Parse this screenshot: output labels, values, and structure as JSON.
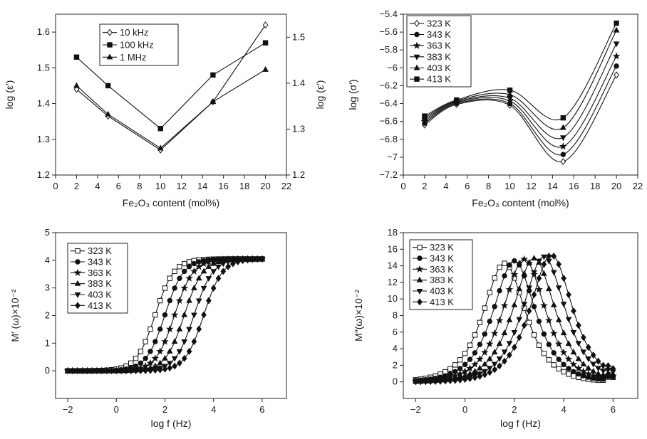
{
  "charts": [
    {
      "id": "a",
      "type": "line",
      "xlabel": "Fe₂O₃ content (mol%)",
      "ylabel": "log (ε′)",
      "ylabel_right": "log (ε′)",
      "xlim": [
        0,
        22
      ],
      "ylim": [
        1.2,
        1.65
      ],
      "ylim_right": [
        1.2,
        1.55
      ],
      "xticks": [
        0,
        2,
        4,
        6,
        8,
        10,
        12,
        14,
        16,
        18,
        20,
        22
      ],
      "yticks": [
        1.2,
        1.3,
        1.4,
        1.5,
        1.6
      ],
      "yticks_right": [
        1.2,
        1.3,
        1.4,
        1.5
      ],
      "legend_position": "top-center",
      "legend_style": "boxed",
      "series": [
        {
          "name": "10 kHz",
          "marker": "diamond-open",
          "x": [
            2,
            5,
            10,
            15,
            20
          ],
          "y": [
            1.44,
            1.365,
            1.27,
            1.405,
            1.62
          ]
        },
        {
          "name": "100 kHz",
          "marker": "square",
          "x": [
            2,
            5,
            10,
            15,
            20
          ],
          "y": [
            1.53,
            1.45,
            1.33,
            1.48,
            1.57
          ]
        },
        {
          "name": "1 MHz",
          "marker": "triangle",
          "x": [
            2,
            5,
            10,
            15,
            20
          ],
          "y": [
            1.45,
            1.37,
            1.275,
            1.405,
            1.495
          ]
        }
      ]
    },
    {
      "id": "b",
      "type": "line",
      "xlabel": "Fe₂O₃ content (mol%)",
      "ylabel": "log (σ′)",
      "xlim": [
        0,
        22
      ],
      "ylim": [
        -7.2,
        -5.4
      ],
      "xticks": [
        0,
        2,
        4,
        6,
        8,
        10,
        12,
        14,
        16,
        18,
        20,
        22
      ],
      "yticks": [
        -7.2,
        -7.0,
        -6.8,
        -6.6,
        -6.4,
        -6.2,
        -6.0,
        -5.8,
        -5.6,
        -5.4
      ],
      "legend_position": "top-left",
      "legend_style": "boxed",
      "series": [
        {
          "name": "323 K",
          "marker": "diamond-open",
          "x": [
            2,
            5,
            10,
            15,
            20
          ],
          "y": [
            -6.64,
            -6.41,
            -6.42,
            -7.05,
            -6.08
          ]
        },
        {
          "name": "343 K",
          "marker": "circle",
          "x": [
            2,
            5,
            10,
            15,
            20
          ],
          "y": [
            -6.62,
            -6.4,
            -6.4,
            -6.97,
            -5.98
          ]
        },
        {
          "name": "363 K",
          "marker": "star",
          "x": [
            2,
            5,
            10,
            15,
            20
          ],
          "y": [
            -6.6,
            -6.39,
            -6.37,
            -6.88,
            -5.87
          ]
        },
        {
          "name": "383 K",
          "marker": "triangle-down",
          "x": [
            2,
            5,
            10,
            15,
            20
          ],
          "y": [
            -6.58,
            -6.38,
            -6.34,
            -6.78,
            -5.73
          ]
        },
        {
          "name": "403 K",
          "marker": "triangle",
          "x": [
            2,
            5,
            10,
            15,
            20
          ],
          "y": [
            -6.56,
            -6.37,
            -6.3,
            -6.67,
            -5.58
          ]
        },
        {
          "name": "413 K",
          "marker": "square",
          "x": [
            2,
            5,
            10,
            15,
            20
          ],
          "y": [
            -6.54,
            -6.36,
            -6.25,
            -6.56,
            -5.5
          ]
        }
      ]
    },
    {
      "id": "c",
      "type": "line",
      "xlabel": "log f (Hz)",
      "ylabel": "M′ (ω)×10⁻²",
      "xlim": [
        -2.5,
        7
      ],
      "ylim": [
        -1,
        5
      ],
      "xticks": [
        -2,
        0,
        2,
        4,
        6
      ],
      "yticks": [
        0,
        1,
        2,
        3,
        4,
        5
      ],
      "legend_position": "top-left",
      "legend_style": "boxed",
      "curve_shape": "sigmoid",
      "x_range": [
        -2,
        6
      ],
      "series": [
        {
          "name": "323 K",
          "marker": "square-open",
          "midpoint": 1.6,
          "max": 4.05
        },
        {
          "name": "343 K",
          "marker": "circle",
          "midpoint": 2.0,
          "max": 4.05
        },
        {
          "name": "363 K",
          "marker": "star",
          "midpoint": 2.4,
          "max": 4.05
        },
        {
          "name": "383 K",
          "marker": "triangle",
          "midpoint": 2.8,
          "max": 4.05
        },
        {
          "name": "403 K",
          "marker": "triangle-down",
          "midpoint": 3.2,
          "max": 4.05
        },
        {
          "name": "413 K",
          "marker": "diamond",
          "midpoint": 3.6,
          "max": 4.05
        }
      ]
    },
    {
      "id": "d",
      "type": "line",
      "xlabel": "log f (Hz)",
      "ylabel": "M″(ω)×10⁻²",
      "xlim": [
        -2.5,
        7
      ],
      "ylim": [
        -2,
        18
      ],
      "xticks": [
        -2,
        0,
        2,
        4,
        6
      ],
      "yticks": [
        0,
        2,
        4,
        6,
        8,
        10,
        12,
        14,
        16,
        18
      ],
      "legend_position": "top-left",
      "legend_style": "boxed",
      "curve_shape": "peak",
      "x_range": [
        -2,
        6
      ],
      "series": [
        {
          "name": "323 K",
          "marker": "square-open",
          "peak_x": 1.6,
          "peak_y": 14.3
        },
        {
          "name": "343 K",
          "marker": "circle",
          "peak_x": 2.0,
          "peak_y": 14.6
        },
        {
          "name": "363 K",
          "marker": "star",
          "peak_x": 2.4,
          "peak_y": 14.8
        },
        {
          "name": "383 K",
          "marker": "triangle",
          "peak_x": 2.8,
          "peak_y": 14.9
        },
        {
          "name": "403 K",
          "marker": "triangle-down",
          "peak_x": 3.2,
          "peak_y": 15.1
        },
        {
          "name": "413 K",
          "marker": "diamond",
          "peak_x": 3.5,
          "peak_y": 15.3
        }
      ]
    }
  ]
}
